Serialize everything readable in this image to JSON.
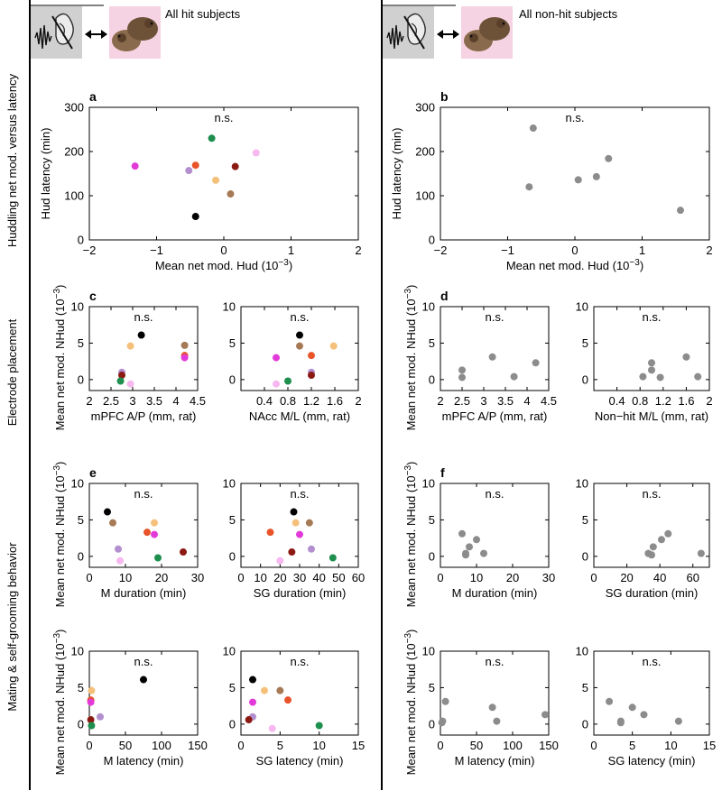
{
  "headers": {
    "left": "All hit subjects",
    "right": "All non-hit subjects"
  },
  "row_labels": {
    "huddling": "Huddling net mod. versus latency",
    "electrode": "Electrode placement",
    "mating": "Mating & self-grooming behavior"
  },
  "colors": {
    "grey": "#8c8c8c",
    "black": "#000000",
    "orange_light": "#f5c07a",
    "brown": "#a57a55",
    "red_orange": "#e8532a",
    "magenta": "#e23ad8",
    "lavender": "#b48fd0",
    "dark_red": "#8b1a12",
    "green": "#1e8f4e",
    "pink_light": "#f7b7ef"
  },
  "chart_data": [
    {
      "id": "a",
      "panel_label": "a",
      "type": "scatter",
      "annotation": "n.s.",
      "xlabel": "Mean net mod. Hud (10",
      "xlabel_sup": "−3",
      "xlabel_tail": ")",
      "ylabel": "Hud latency (min)",
      "xlim": [
        -2,
        2
      ],
      "ylim": [
        0,
        300
      ],
      "xticks": [
        -2,
        -1,
        0,
        1,
        2
      ],
      "xticklabels": [
        "−2",
        "−1",
        "0",
        "1",
        "2"
      ],
      "yticks": [
        0,
        100,
        200,
        300
      ],
      "yticklabels": [
        "0",
        "100",
        "200",
        "300"
      ],
      "points": [
        {
          "x": -1.32,
          "y": 167,
          "color": "magenta"
        },
        {
          "x": -0.52,
          "y": 157,
          "color": "lavender"
        },
        {
          "x": -0.42,
          "y": 169,
          "color": "red_orange"
        },
        {
          "x": -0.18,
          "y": 230,
          "color": "green"
        },
        {
          "x": 0.17,
          "y": 166,
          "color": "dark_red"
        },
        {
          "x": 0.48,
          "y": 197,
          "color": "pink_light"
        },
        {
          "x": -0.12,
          "y": 135,
          "color": "orange_light"
        },
        {
          "x": 0.1,
          "y": 104,
          "color": "brown"
        },
        {
          "x": -0.42,
          "y": 53,
          "color": "black"
        }
      ]
    },
    {
      "id": "b",
      "panel_label": "b",
      "type": "scatter",
      "annotation": "n.s.",
      "xlabel": "Mean net mod. Hud (10",
      "xlabel_sup": "−3",
      "xlabel_tail": ")",
      "ylabel": "Hud latency (min)",
      "xlim": [
        -2,
        2
      ],
      "ylim": [
        0,
        300
      ],
      "xticks": [
        -2,
        -1,
        0,
        1,
        2
      ],
      "xticklabels": [
        "−2",
        "−1",
        "0",
        "1",
        "2"
      ],
      "yticks": [
        0,
        100,
        200,
        300
      ],
      "yticklabels": [
        "0",
        "100",
        "200",
        "300"
      ],
      "points": [
        {
          "x": -0.62,
          "y": 253,
          "color": "grey"
        },
        {
          "x": -0.68,
          "y": 120,
          "color": "grey"
        },
        {
          "x": 0.05,
          "y": 136,
          "color": "grey"
        },
        {
          "x": 0.32,
          "y": 143,
          "color": "grey"
        },
        {
          "x": 0.5,
          "y": 184,
          "color": "grey"
        },
        {
          "x": 1.57,
          "y": 67,
          "color": "grey"
        }
      ]
    },
    {
      "id": "c1",
      "panel_label": "c",
      "type": "scatter",
      "annotation": "n.s.",
      "xlabel": "mPFC A/P (mm, rat)",
      "ylabel": "Mean net mod. NHud (10",
      "ylabel_sup": "−3",
      "ylabel_tail": ")",
      "xlim": [
        2,
        4.5
      ],
      "ylim": [
        -1.5,
        10
      ],
      "xticks": [
        2,
        2.5,
        3,
        3.5,
        4,
        4.5
      ],
      "xticklabels": [
        "2",
        "2.5",
        "3",
        "3.5",
        "4",
        "4.5"
      ],
      "yticks": [
        0,
        5,
        10
      ],
      "yticklabels": [
        "0",
        "5",
        "10"
      ],
      "points": [
        {
          "x": 3.2,
          "y": 6.1,
          "color": "black"
        },
        {
          "x": 2.95,
          "y": 4.6,
          "color": "orange_light"
        },
        {
          "x": 4.2,
          "y": 4.7,
          "color": "brown"
        },
        {
          "x": 4.2,
          "y": 3.3,
          "color": "red_orange"
        },
        {
          "x": 4.2,
          "y": 3.0,
          "color": "magenta"
        },
        {
          "x": 2.75,
          "y": 1.0,
          "color": "lavender"
        },
        {
          "x": 2.75,
          "y": 0.6,
          "color": "dark_red"
        },
        {
          "x": 2.72,
          "y": -0.2,
          "color": "green"
        },
        {
          "x": 2.95,
          "y": -0.6,
          "color": "pink_light"
        }
      ]
    },
    {
      "id": "c2",
      "panel_label": "",
      "type": "scatter",
      "annotation": "n.s.",
      "xlabel": "NAcc M/L (mm, rat)",
      "xlim": [
        0,
        2
      ],
      "ylim": [
        -1.5,
        10
      ],
      "xticks": [
        0.4,
        0.8,
        1.2,
        1.6,
        2
      ],
      "xticklabels": [
        "0.4",
        "0.8",
        "1.2",
        "1.6",
        "2"
      ],
      "yticks": [
        0,
        5,
        10
      ],
      "yticklabels": [
        "0",
        "5",
        "10"
      ],
      "points": [
        {
          "x": 1.0,
          "y": 6.1,
          "color": "black"
        },
        {
          "x": 1.0,
          "y": 4.6,
          "color": "brown"
        },
        {
          "x": 1.58,
          "y": 4.6,
          "color": "orange_light"
        },
        {
          "x": 1.2,
          "y": 3.3,
          "color": "red_orange"
        },
        {
          "x": 0.6,
          "y": 3.0,
          "color": "magenta"
        },
        {
          "x": 1.2,
          "y": 1.0,
          "color": "lavender"
        },
        {
          "x": 1.2,
          "y": 0.6,
          "color": "dark_red"
        },
        {
          "x": 0.8,
          "y": -0.2,
          "color": "green"
        },
        {
          "x": 0.6,
          "y": -0.6,
          "color": "pink_light"
        }
      ]
    },
    {
      "id": "d1",
      "panel_label": "d",
      "type": "scatter",
      "annotation": "n.s.",
      "xlabel": "mPFC A/P (mm, rat)",
      "ylabel": "Mean net mod. NHud (10",
      "ylabel_sup": "−3",
      "ylabel_tail": ")",
      "xlim": [
        2,
        4.5
      ],
      "ylim": [
        -1.5,
        10
      ],
      "xticks": [
        2,
        2.5,
        3,
        3.5,
        4,
        4.5
      ],
      "xticklabels": [
        "2",
        "2.5",
        "3",
        "3.5",
        "4",
        "4.5"
      ],
      "yticks": [
        0,
        5,
        10
      ],
      "yticklabels": [
        "0",
        "5",
        "10"
      ],
      "points": [
        {
          "x": 2.5,
          "y": 1.3,
          "color": "grey"
        },
        {
          "x": 2.5,
          "y": 0.3,
          "color": "grey"
        },
        {
          "x": 3.2,
          "y": 3.1,
          "color": "grey"
        },
        {
          "x": 3.7,
          "y": 0.4,
          "color": "grey"
        },
        {
          "x": 4.2,
          "y": 2.3,
          "color": "grey"
        }
      ]
    },
    {
      "id": "d2",
      "panel_label": "",
      "type": "scatter",
      "annotation": "n.s.",
      "xlabel": "Non−hit M/L (mm, rat)",
      "xlim": [
        0,
        2
      ],
      "ylim": [
        -1.5,
        10
      ],
      "xticks": [
        0.4,
        0.8,
        1.2,
        1.6,
        2
      ],
      "xticklabels": [
        "0.4",
        "0.8",
        "1.2",
        "1.6",
        "2"
      ],
      "yticks": [
        0,
        5,
        10
      ],
      "yticklabels": [
        "0",
        "5",
        "10"
      ],
      "points": [
        {
          "x": 0.85,
          "y": 0.4,
          "color": "grey"
        },
        {
          "x": 1.0,
          "y": 2.3,
          "color": "grey"
        },
        {
          "x": 1.0,
          "y": 1.3,
          "color": "grey"
        },
        {
          "x": 1.15,
          "y": 0.3,
          "color": "grey"
        },
        {
          "x": 1.6,
          "y": 3.1,
          "color": "grey"
        },
        {
          "x": 1.8,
          "y": 0.4,
          "color": "grey"
        }
      ]
    },
    {
      "id": "e1",
      "panel_label": "e",
      "type": "scatter",
      "annotation": "n.s.",
      "xlabel": "M duration (min)",
      "ylabel": "Mean net mod. NHud (10",
      "ylabel_sup": "−3",
      "ylabel_tail": ")",
      "xlim": [
        0,
        30
      ],
      "ylim": [
        -1.5,
        10
      ],
      "xticks": [
        0,
        10,
        20,
        30
      ],
      "xticklabels": [
        "0",
        "10",
        "20",
        "30"
      ],
      "yticks": [
        0,
        5,
        10
      ],
      "yticklabels": [
        "0",
        "5",
        "10"
      ],
      "points": [
        {
          "x": 5,
          "y": 6.1,
          "color": "black"
        },
        {
          "x": 6.5,
          "y": 4.6,
          "color": "brown"
        },
        {
          "x": 18,
          "y": 4.6,
          "color": "orange_light"
        },
        {
          "x": 16,
          "y": 3.3,
          "color": "red_orange"
        },
        {
          "x": 18,
          "y": 3.0,
          "color": "magenta"
        },
        {
          "x": 8,
          "y": 1.0,
          "color": "lavender"
        },
        {
          "x": 26,
          "y": 0.6,
          "color": "dark_red"
        },
        {
          "x": 19,
          "y": -0.2,
          "color": "green"
        },
        {
          "x": 8.5,
          "y": -0.6,
          "color": "pink_light"
        }
      ]
    },
    {
      "id": "e2",
      "panel_label": "",
      "type": "scatter",
      "annotation": "n.s.",
      "xlabel": "SG duration (min)",
      "xlim": [
        0,
        60
      ],
      "ylim": [
        -1.5,
        10
      ],
      "xticks": [
        0,
        10,
        20,
        30,
        40,
        50,
        60
      ],
      "xticklabels": [
        "0",
        "10",
        "20",
        "30",
        "40",
        "50",
        "60"
      ],
      "yticks": [
        0,
        5,
        10
      ],
      "yticklabels": [
        "0",
        "5",
        "10"
      ],
      "points": [
        {
          "x": 27,
          "y": 6.1,
          "color": "black"
        },
        {
          "x": 28,
          "y": 4.6,
          "color": "orange_light"
        },
        {
          "x": 35,
          "y": 4.6,
          "color": "brown"
        },
        {
          "x": 15,
          "y": 3.3,
          "color": "red_orange"
        },
        {
          "x": 30,
          "y": 3.0,
          "color": "magenta"
        },
        {
          "x": 36,
          "y": 1.0,
          "color": "lavender"
        },
        {
          "x": 26,
          "y": 0.6,
          "color": "dark_red"
        },
        {
          "x": 47,
          "y": -0.2,
          "color": "green"
        },
        {
          "x": 20,
          "y": -0.6,
          "color": "pink_light"
        }
      ]
    },
    {
      "id": "f1",
      "panel_label": "f",
      "type": "scatter",
      "annotation": "n.s.",
      "xlabel": "M duration (min)",
      "ylabel": "Mean net mod. NHud (10",
      "ylabel_sup": "−3",
      "ylabel_tail": ")",
      "xlim": [
        0,
        30
      ],
      "ylim": [
        -1.5,
        10
      ],
      "xticks": [
        0,
        10,
        20,
        30
      ],
      "xticklabels": [
        "0",
        "10",
        "20",
        "30"
      ],
      "yticks": [
        0,
        5,
        10
      ],
      "yticklabels": [
        "0",
        "5",
        "10"
      ],
      "points": [
        {
          "x": 6,
          "y": 3.1,
          "color": "grey"
        },
        {
          "x": 10,
          "y": 2.3,
          "color": "grey"
        },
        {
          "x": 8,
          "y": 1.3,
          "color": "grey"
        },
        {
          "x": 7,
          "y": 0.4,
          "color": "grey"
        },
        {
          "x": 7,
          "y": 0.2,
          "color": "grey"
        },
        {
          "x": 12,
          "y": 0.4,
          "color": "grey"
        }
      ]
    },
    {
      "id": "f2",
      "panel_label": "",
      "type": "scatter",
      "annotation": "n.s.",
      "xlabel": "SG duration (min)",
      "xlim": [
        0,
        70
      ],
      "ylim": [
        -1.5,
        10
      ],
      "xticks": [
        0,
        20,
        40,
        60
      ],
      "xticklabels": [
        "0",
        "20",
        "40",
        "60"
      ],
      "yticks": [
        0,
        5,
        10
      ],
      "yticklabels": [
        "0",
        "5",
        "10"
      ],
      "points": [
        {
          "x": 45,
          "y": 3.1,
          "color": "grey"
        },
        {
          "x": 41,
          "y": 2.3,
          "color": "grey"
        },
        {
          "x": 36,
          "y": 1.3,
          "color": "grey"
        },
        {
          "x": 33,
          "y": 0.4,
          "color": "grey"
        },
        {
          "x": 35,
          "y": 0.2,
          "color": "grey"
        },
        {
          "x": 65,
          "y": 0.4,
          "color": "grey"
        }
      ]
    },
    {
      "id": "g1",
      "panel_label": "",
      "type": "scatter",
      "annotation": "n.s.",
      "xlabel": "M latency (min)",
      "ylabel": "Mean net mod. NHud (10",
      "ylabel_sup": "−3",
      "ylabel_tail": ")",
      "xlim": [
        0,
        150
      ],
      "ylim": [
        -1.5,
        10
      ],
      "xticks": [
        0,
        50,
        100,
        150
      ],
      "xticklabels": [
        "0",
        "50",
        "100",
        "150"
      ],
      "yticks": [
        0,
        5,
        10
      ],
      "yticklabels": [
        "0",
        "5",
        "10"
      ],
      "points": [
        {
          "x": 75,
          "y": 6.1,
          "color": "black"
        },
        {
          "x": 3,
          "y": 4.6,
          "color": "orange_light"
        },
        {
          "x": 2,
          "y": 3.3,
          "color": "red_orange"
        },
        {
          "x": 2,
          "y": 3.0,
          "color": "magenta"
        },
        {
          "x": 15,
          "y": 1.0,
          "color": "lavender"
        },
        {
          "x": 2,
          "y": 0.6,
          "color": "dark_red"
        },
        {
          "x": 3,
          "y": -0.2,
          "color": "green"
        }
      ]
    },
    {
      "id": "g2",
      "panel_label": "",
      "type": "scatter",
      "annotation": "n.s.",
      "xlabel": "SG latency (min)",
      "xlim": [
        0,
        15
      ],
      "ylim": [
        -1.5,
        10
      ],
      "xticks": [
        0,
        5,
        10,
        15
      ],
      "xticklabels": [
        "0",
        "5",
        "10",
        "15"
      ],
      "yticks": [
        0,
        5,
        10
      ],
      "yticklabels": [
        "0",
        "5",
        "10"
      ],
      "points": [
        {
          "x": 1.5,
          "y": 6.1,
          "color": "black"
        },
        {
          "x": 3,
          "y": 4.6,
          "color": "orange_light"
        },
        {
          "x": 5,
          "y": 4.6,
          "color": "brown"
        },
        {
          "x": 6,
          "y": 3.3,
          "color": "red_orange"
        },
        {
          "x": 1.5,
          "y": 3.0,
          "color": "magenta"
        },
        {
          "x": 1.5,
          "y": 1.0,
          "color": "lavender"
        },
        {
          "x": 1,
          "y": 0.6,
          "color": "dark_red"
        },
        {
          "x": 10,
          "y": -0.2,
          "color": "green"
        },
        {
          "x": 4,
          "y": -0.6,
          "color": "pink_light"
        }
      ]
    },
    {
      "id": "h1",
      "panel_label": "",
      "type": "scatter",
      "annotation": "n.s.",
      "xlabel": "M latency (min)",
      "ylabel": "Mean net mod. NHud (10",
      "ylabel_sup": "−3",
      "ylabel_tail": ")",
      "xlim": [
        0,
        150
      ],
      "ylim": [
        -1.5,
        10
      ],
      "xticks": [
        0,
        50,
        100,
        150
      ],
      "xticklabels": [
        "0",
        "50",
        "100",
        "150"
      ],
      "yticks": [
        0,
        5,
        10
      ],
      "yticklabels": [
        "0",
        "5",
        "10"
      ],
      "points": [
        {
          "x": 7,
          "y": 3.1,
          "color": "grey"
        },
        {
          "x": 72,
          "y": 2.3,
          "color": "grey"
        },
        {
          "x": 145,
          "y": 1.3,
          "color": "grey"
        },
        {
          "x": 78,
          "y": 0.4,
          "color": "grey"
        },
        {
          "x": 3,
          "y": 0.4,
          "color": "grey"
        },
        {
          "x": 2,
          "y": 0.2,
          "color": "grey"
        }
      ]
    },
    {
      "id": "h2",
      "panel_label": "",
      "type": "scatter",
      "annotation": "n.s.",
      "xlabel": "SG latency (min)",
      "xlim": [
        0,
        15
      ],
      "ylim": [
        -1.5,
        10
      ],
      "xticks": [
        0,
        5,
        10,
        15
      ],
      "xticklabels": [
        "0",
        "5",
        "10",
        "15"
      ],
      "yticks": [
        0,
        5,
        10
      ],
      "yticklabels": [
        "0",
        "5",
        "10"
      ],
      "points": [
        {
          "x": 2,
          "y": 3.1,
          "color": "grey"
        },
        {
          "x": 5,
          "y": 2.3,
          "color": "grey"
        },
        {
          "x": 6.5,
          "y": 1.3,
          "color": "grey"
        },
        {
          "x": 3.5,
          "y": 0.4,
          "color": "grey"
        },
        {
          "x": 3.5,
          "y": 0.2,
          "color": "grey"
        },
        {
          "x": 11,
          "y": 0.4,
          "color": "grey"
        }
      ]
    }
  ]
}
